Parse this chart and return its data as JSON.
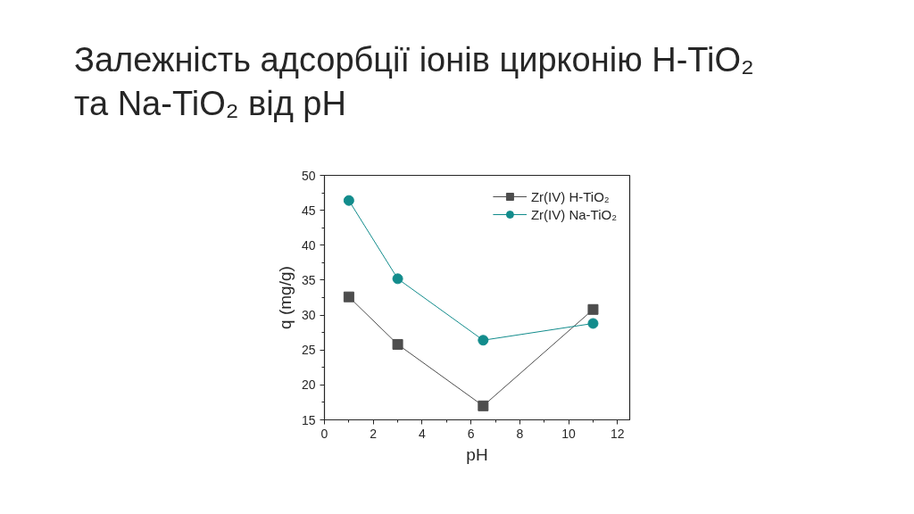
{
  "chart_data": {
    "type": "line",
    "title": "Залежність адсорбції іонів цирконію H-TiO₂ та Na-TiO₂ від pH",
    "xlabel": "pH",
    "ylabel": "q (mg/g)",
    "x": [
      1,
      3,
      6.5,
      11
    ],
    "series": [
      {
        "name": "Zr(IV) H-TiO₂",
        "color": "#4d4d4d",
        "marker": "square",
        "values": [
          32.6,
          25.8,
          17.0,
          30.8
        ]
      },
      {
        "name": "Zr(IV) Na-TiO₂",
        "color": "#128c8c",
        "marker": "circle",
        "values": [
          46.4,
          35.2,
          26.4,
          28.8
        ]
      }
    ],
    "xlim": [
      0,
      12.5
    ],
    "ylim": [
      15,
      50
    ],
    "xticks": [
      0,
      2,
      4,
      6,
      8,
      10,
      12
    ],
    "yticks": [
      15,
      20,
      25,
      30,
      35,
      40,
      45,
      50
    ],
    "legend": "top right",
    "line_style": "solid"
  }
}
